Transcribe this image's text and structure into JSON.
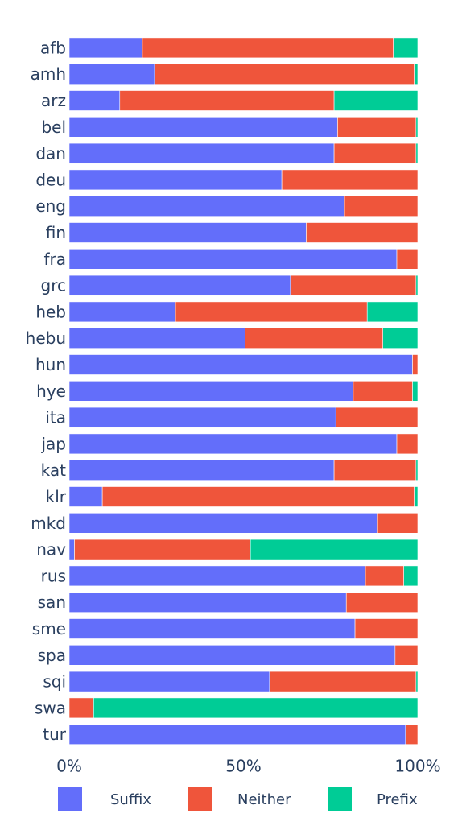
{
  "chart_data": {
    "type": "bar",
    "orientation": "horizontal",
    "stacked": true,
    "normalized": true,
    "categories": [
      "afb",
      "amh",
      "arz",
      "bel",
      "dan",
      "deu",
      "eng",
      "fin",
      "fra",
      "grc",
      "heb",
      "hebu",
      "hun",
      "hye",
      "ita",
      "jap",
      "kat",
      "klr",
      "mkd",
      "nav",
      "rus",
      "san",
      "sme",
      "spa",
      "sqi",
      "swa",
      "tur"
    ],
    "series": [
      {
        "name": "Suffix",
        "color": "#636efa",
        "values": [
          21,
          24.5,
          14.5,
          77,
          76,
          61,
          79,
          68,
          94,
          63.5,
          30.5,
          50.5,
          98.5,
          81.5,
          76.5,
          94,
          76,
          9.5,
          88.5,
          1.5,
          85,
          79.5,
          82,
          93.5,
          57.5,
          0,
          96.5
        ]
      },
      {
        "name": "Neither",
        "color": "#ef553b",
        "values": [
          72,
          74.5,
          61.5,
          22.5,
          23.5,
          39,
          21,
          32,
          6,
          36,
          55,
          39.5,
          1.5,
          17,
          23.5,
          6,
          23.5,
          89.5,
          11.5,
          50.5,
          11,
          20.5,
          18,
          6.5,
          42,
          7,
          3.5
        ]
      },
      {
        "name": "Prefix",
        "color": "#00cc96",
        "values": [
          7,
          1,
          24,
          0.5,
          0.5,
          0,
          0,
          0,
          0,
          0.5,
          14.5,
          10,
          0,
          1.5,
          0,
          0,
          0.5,
          1,
          0,
          48,
          4,
          0,
          0,
          0,
          0.5,
          93,
          0
        ]
      }
    ],
    "xlim": [
      0,
      100
    ],
    "x_ticks": [
      "0%",
      "50%",
      "100%"
    ],
    "title": "",
    "xlabel": "",
    "ylabel": "",
    "grid": false,
    "legend": {
      "placement": "bottom",
      "orientation": "horizontal"
    }
  }
}
